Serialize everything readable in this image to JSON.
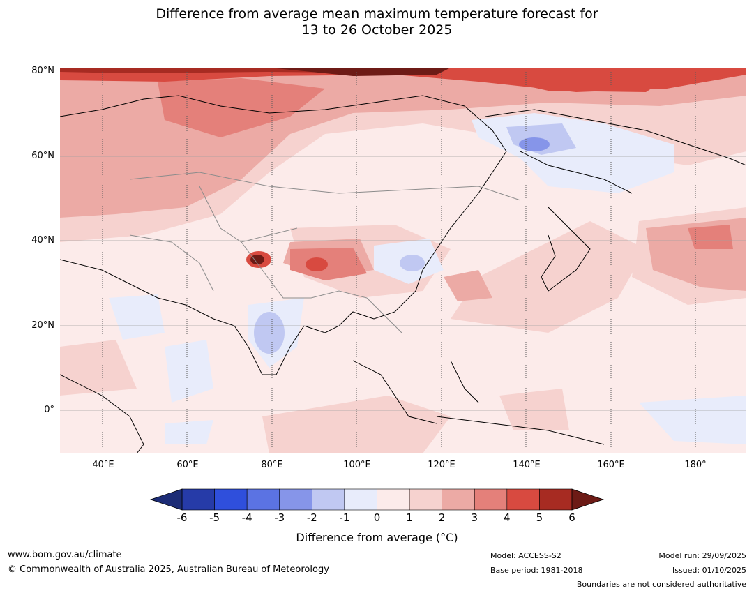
{
  "title": {
    "line1": "Difference from average mean maximum temperature forecast for",
    "line2": "13 to 26 October 2025"
  },
  "map": {
    "lat_labels": [
      "80°N",
      "60°N",
      "40°N",
      "20°N",
      "0°"
    ],
    "lon_labels": [
      "40°E",
      "60°E",
      "80°E",
      "100°E",
      "120°E",
      "140°E",
      "160°E",
      "180°"
    ],
    "anomaly_regions": [
      {
        "region": "Arctic coast Siberia",
        "category": "5 to 6"
      },
      {
        "region": "Western Himalaya",
        "category": "above 6"
      },
      {
        "region": "Tibetan Plateau",
        "category": "4 to 5"
      },
      {
        "region": "Eastern Siberia",
        "category": "-3 to -2"
      },
      {
        "region": "Central China",
        "category": "-2 to -1"
      },
      {
        "region": "India",
        "category": "-2 to -1"
      },
      {
        "region": "North Pacific",
        "category": "2 to 3"
      }
    ]
  },
  "colorbar": {
    "ticks": [
      "-6",
      "-5",
      "-4",
      "-3",
      "-2",
      "-1",
      "0",
      "1",
      "2",
      "3",
      "4",
      "5",
      "6"
    ],
    "colors": [
      "#263ba8",
      "#2f4fdc",
      "#5b73e3",
      "#8695e9",
      "#c0c8f2",
      "#e8ecfb",
      "#fcebea",
      "#f6d2cf",
      "#ecaaa5",
      "#e4807a",
      "#d84a40",
      "#a72b22"
    ],
    "under_color": "#1c2c76",
    "over_color": "#6d1b16",
    "label": "Difference from average (°C)"
  },
  "footer": {
    "website": "www.bom.gov.au/climate",
    "copyright": "© Commonwealth of Australia 2025, Australian Bureau of Meteorology",
    "model": "Model: ACCESS-S2",
    "base_period": "Base period: 1981-2018",
    "model_run": "Model run: 29/09/2025",
    "issued": "Issued: 01/10/2025",
    "disclaimer": "Boundaries are not considered authoritative"
  }
}
